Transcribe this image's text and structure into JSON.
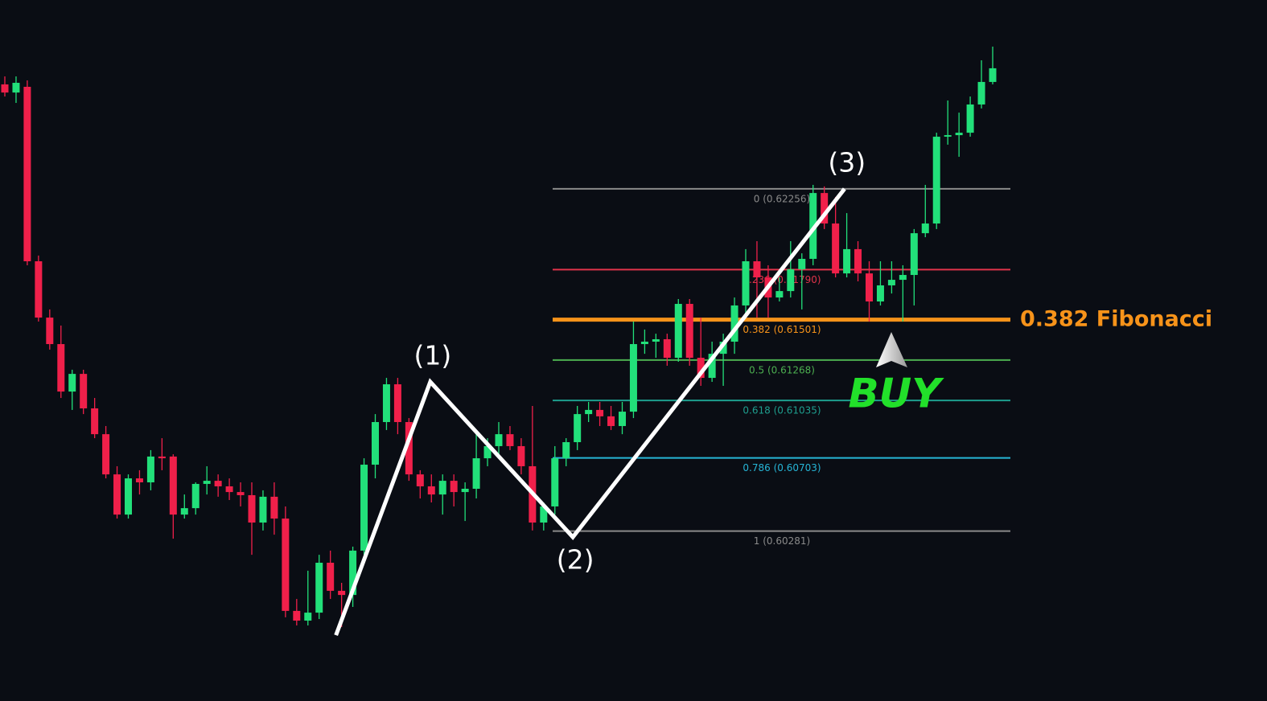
{
  "chart_data": {
    "type": "candlestick",
    "ylim": [
      0.593,
      0.63346
    ],
    "colors": {
      "up": "#22e07a",
      "down": "#f0204a"
    },
    "open": [
      0.62859,
      0.62812,
      0.62845,
      0.61838,
      0.61513,
      0.6136,
      0.61086,
      0.61188,
      0.60989,
      0.6084,
      0.60608,
      0.60376,
      0.60585,
      0.60562,
      0.60711,
      0.60711,
      0.60376,
      0.60413,
      0.60553,
      0.60571,
      0.60539,
      0.60506,
      0.60488,
      0.6033,
      0.60479,
      0.60353,
      0.5982,
      0.59764,
      0.5981,
      0.60098,
      0.59936,
      0.59912,
      0.60168,
      0.60664,
      0.6091,
      0.61128,
      0.6091,
      0.60608,
      0.60539,
      0.60492,
      0.60571,
      0.60506,
      0.60525,
      0.60701,
      0.60771,
      0.6084,
      0.60771,
      0.60655,
      0.6033,
      0.60423,
      0.60701,
      0.60794,
      0.60956,
      0.6098,
      0.60943,
      0.60887,
      0.6097,
      0.6136,
      0.61374,
      0.61388,
      0.61281,
      0.61592,
      0.61281,
      0.61165,
      0.61304,
      0.61374,
      0.61583,
      0.61838,
      0.61745,
      0.61629,
      0.61666,
      0.61792,
      0.61852,
      0.62232,
      0.62056,
      0.61768,
      0.61908,
      0.61768,
      0.61606,
      0.61699,
      0.61731,
      0.61759,
      0.62,
      0.62056,
      0.62557,
      0.62566,
      0.6258,
      0.62743,
      0.62873
    ],
    "high": [
      0.62905,
      0.62905,
      0.62882,
      0.61871,
      0.6156,
      0.61467,
      0.61212,
      0.61212,
      0.61049,
      0.60887,
      0.60655,
      0.60608,
      0.60632,
      0.60748,
      0.60817,
      0.60724,
      0.60492,
      0.60562,
      0.60655,
      0.60608,
      0.60585,
      0.60562,
      0.60562,
      0.60516,
      0.60562,
      0.60423,
      0.59889,
      0.60052,
      0.60144,
      0.60168,
      0.59982,
      0.60191,
      0.60701,
      0.60956,
      0.61165,
      0.61165,
      0.60933,
      0.60632,
      0.60608,
      0.60608,
      0.60608,
      0.60562,
      0.6084,
      0.60817,
      0.6091,
      0.60887,
      0.60817,
      0.61003,
      0.60446,
      0.60771,
      0.60817,
      0.61003,
      0.61026,
      0.61026,
      0.61003,
      0.61026,
      0.6149,
      0.61444,
      0.6142,
      0.6142,
      0.6162,
      0.6162,
      0.61513,
      0.61374,
      0.6142,
      0.61629,
      0.61908,
      0.61954,
      0.61815,
      0.61745,
      0.61954,
      0.61884,
      0.62279,
      0.6227,
      0.62209,
      0.62116,
      0.61954,
      0.61838,
      0.61838,
      0.61838,
      0.61815,
      0.62024,
      0.62279,
      0.6258,
      0.62766,
      0.62696,
      0.62789,
      0.62998,
      0.63077
    ],
    "low": [
      0.62789,
      0.62752,
      0.61815,
      0.6149,
      0.61328,
      0.61049,
      0.6098,
      0.60956,
      0.60817,
      0.60585,
      0.60353,
      0.60353,
      0.60492,
      0.60516,
      0.60632,
      0.60237,
      0.60353,
      0.60376,
      0.60492,
      0.60479,
      0.6046,
      0.60423,
      0.60144,
      0.60284,
      0.6026,
      0.59783,
      0.59736,
      0.59736,
      0.59773,
      0.59889,
      0.59727,
      0.59843,
      0.60144,
      0.60585,
      0.60864,
      0.6084,
      0.60571,
      0.60469,
      0.60446,
      0.60376,
      0.60423,
      0.60339,
      0.60469,
      0.60655,
      0.60724,
      0.60748,
      0.60608,
      0.60284,
      0.60284,
      0.60376,
      0.60655,
      0.60748,
      0.6091,
      0.60887,
      0.60864,
      0.6084,
      0.60933,
      0.61304,
      0.61281,
      0.61235,
      0.61258,
      0.61235,
      0.61119,
      0.61142,
      0.61119,
      0.61304,
      0.61536,
      0.61513,
      0.61513,
      0.61606,
      0.61629,
      0.6156,
      0.61815,
      0.62024,
      0.61745,
      0.61745,
      0.61722,
      0.6149,
      0.61583,
      0.61652,
      0.6149,
      0.61583,
      0.61977,
      0.62024,
      0.62511,
      0.62441,
      0.62557,
      0.6272,
      0.62859
    ],
    "close": [
      0.62812,
      0.62868,
      0.61838,
      0.61513,
      0.6136,
      0.61086,
      0.61188,
      0.60989,
      0.6084,
      0.60608,
      0.60376,
      0.60585,
      0.60562,
      0.60711,
      0.60701,
      0.60376,
      0.60413,
      0.60553,
      0.60571,
      0.60539,
      0.60506,
      0.60488,
      0.6033,
      0.60479,
      0.60353,
      0.5982,
      0.59764,
      0.5981,
      0.60098,
      0.59936,
      0.59912,
      0.60168,
      0.60664,
      0.6091,
      0.61128,
      0.6091,
      0.60608,
      0.60539,
      0.60492,
      0.60571,
      0.60506,
      0.60525,
      0.60701,
      0.60771,
      0.6084,
      0.60771,
      0.60655,
      0.6033,
      0.60423,
      0.60701,
      0.60794,
      0.60956,
      0.6098,
      0.60943,
      0.60887,
      0.6097,
      0.6136,
      0.61374,
      0.61388,
      0.61281,
      0.61592,
      0.61281,
      0.61165,
      0.61304,
      0.61374,
      0.61583,
      0.61838,
      0.61745,
      0.61629,
      0.61666,
      0.61792,
      0.61852,
      0.62232,
      0.62056,
      0.61768,
      0.61908,
      0.61768,
      0.61606,
      0.61699,
      0.61731,
      0.61759,
      0.62,
      0.62056,
      0.62557,
      0.62566,
      0.6258,
      0.62743,
      0.62873,
      0.62952
    ],
    "fib_levels": [
      {
        "price": {
          "value": 0.62256,
          "label": "0 (0.62256)"
        },
        "color": "#8a8a8a"
      },
      {
        "price": {
          "value": 0.6179,
          "label": "0.236 (0.61790)"
        },
        "color": "#e0334a"
      },
      {
        "price": {
          "value": 0.61501,
          "label": "0.382 (0.61501)"
        },
        "color": "#f7931a"
      },
      {
        "price": {
          "value": 0.61268,
          "label": "0.5 (0.61268)"
        },
        "color": "#4caf50"
      },
      {
        "price": {
          "value": 0.61035,
          "label": "0.618 (0.61035)"
        },
        "color": "#1e9e8e"
      },
      {
        "price": {
          "value": 0.60703,
          "label": "0.786 (0.60703)"
        },
        "color": "#26b5d6"
      },
      {
        "price": {
          "value": 0.60281,
          "label": "1 (0.60281)"
        },
        "color": "#8a8a8a"
      }
    ],
    "highlight_label": "0.382 Fibonacci",
    "signal": "BUY",
    "wave": {
      "x": [
        29.5,
        37.9,
        50.6,
        74.8
      ],
      "values": [
        0.5968,
        0.61142,
        0.60246,
        0.62256
      ]
    },
    "wave_labels": [
      "(1)",
      "(2)",
      "(3)"
    ]
  }
}
